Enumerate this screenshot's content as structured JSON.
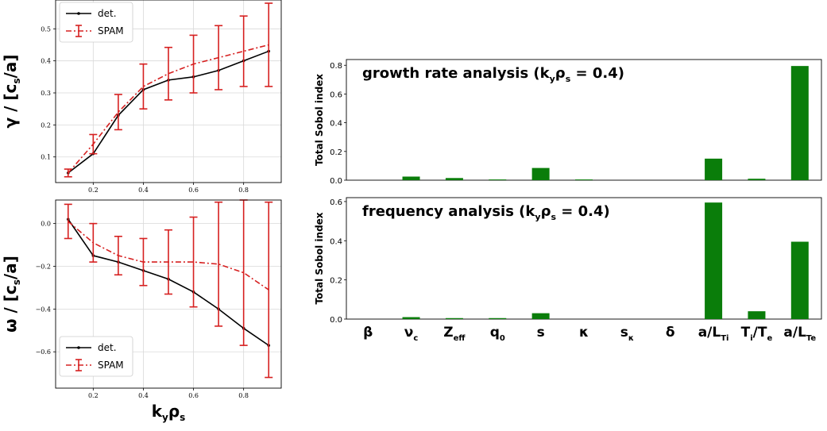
{
  "chart_data": [
    {
      "id": "growth",
      "type": "line",
      "ylabel_main": "γ / [c",
      "ylabel_sub": "s",
      "ylabel_tail": "/a]",
      "xlim": [
        0.05,
        0.95
      ],
      "ylim": [
        0.02,
        0.59
      ],
      "xticks": [
        "0.2",
        "0.4",
        "0.6",
        "0.8"
      ],
      "yticks": [
        "0.1",
        "0.2",
        "0.3",
        "0.4",
        "0.5"
      ],
      "grid": true,
      "legend_position": "upper-left",
      "series": [
        {
          "name": "det.",
          "color": "#000000",
          "x": [
            0.1,
            0.2,
            0.3,
            0.4,
            0.5,
            0.6,
            0.7,
            0.8,
            0.9
          ],
          "y": [
            0.05,
            0.11,
            0.23,
            0.31,
            0.34,
            0.35,
            0.37,
            0.4,
            0.43
          ]
        },
        {
          "name": "SPAM",
          "color": "#d62020",
          "x": [
            0.1,
            0.2,
            0.3,
            0.4,
            0.5,
            0.6,
            0.7,
            0.8,
            0.9
          ],
          "y": [
            0.05,
            0.14,
            0.24,
            0.32,
            0.36,
            0.39,
            0.41,
            0.43,
            0.45
          ],
          "err": [
            0.012,
            0.03,
            0.055,
            0.07,
            0.082,
            0.09,
            0.1,
            0.11,
            0.13
          ]
        }
      ]
    },
    {
      "id": "frequency",
      "type": "line",
      "ylabel_main": "ω / [c",
      "ylabel_sub": "s",
      "ylabel_tail": "/a]",
      "xlabel_main": "k",
      "xlabel_sub1": "y",
      "xlabel_mid": "ρ",
      "xlabel_sub2": "s",
      "xlim": [
        0.05,
        0.95
      ],
      "ylim": [
        -0.77,
        0.11
      ],
      "xticks": [
        "0.2",
        "0.4",
        "0.6",
        "0.8"
      ],
      "yticks": [
        "−0.6",
        "−0.4",
        "−0.2",
        "0.0"
      ],
      "grid": true,
      "legend_position": "lower-left",
      "series": [
        {
          "name": "det.",
          "color": "#000000",
          "x": [
            0.1,
            0.2,
            0.3,
            0.4,
            0.5,
            0.6,
            0.7,
            0.8,
            0.9
          ],
          "y": [
            0.02,
            -0.15,
            -0.18,
            -0.22,
            -0.26,
            -0.32,
            -0.4,
            -0.49,
            -0.57
          ]
        },
        {
          "name": "SPAM",
          "color": "#d62020",
          "x": [
            0.1,
            0.2,
            0.3,
            0.4,
            0.5,
            0.6,
            0.7,
            0.8,
            0.9
          ],
          "y": [
            0.01,
            -0.09,
            -0.15,
            -0.18,
            -0.18,
            -0.18,
            -0.19,
            -0.23,
            -0.31
          ],
          "err": [
            0.08,
            0.09,
            0.09,
            0.11,
            0.15,
            0.21,
            0.29,
            0.34,
            0.41
          ]
        }
      ]
    },
    {
      "id": "sobol-growth",
      "type": "bar",
      "title_pre": "growth rate analysis (k",
      "title_sub1": "y",
      "title_mid": "ρ",
      "title_sub2": "s",
      "title_post": " = 0.4)",
      "ylabel": "Total Sobol index",
      "ylim": [
        0,
        0.84
      ],
      "yticks": [
        "0.0",
        "0.2",
        "0.4",
        "0.6",
        "0.8"
      ],
      "color": "#0a7d0a",
      "values": [
        0.0,
        0.025,
        0.015,
        0.005,
        0.085,
        0.005,
        0.0,
        0.0,
        0.15,
        0.01,
        0.795
      ]
    },
    {
      "id": "sobol-frequency",
      "type": "bar",
      "title_pre": "frequency analysis (k",
      "title_sub1": "y",
      "title_mid": "ρ",
      "title_sub2": "s",
      "title_post": " = 0.4)",
      "ylabel": "Total Sobol index",
      "ylim": [
        0,
        0.62
      ],
      "yticks": [
        "0.0",
        "0.2",
        "0.4",
        "0.6"
      ],
      "color": "#0a7d0a",
      "values": [
        0.0,
        0.01,
        0.005,
        0.005,
        0.03,
        0.0,
        0.0,
        0.0,
        0.595,
        0.04,
        0.395
      ],
      "categories": [
        {
          "main": "β",
          "sub": ""
        },
        {
          "main": "ν",
          "sub": "c"
        },
        {
          "main": "Z",
          "sub": "eff"
        },
        {
          "main": "q",
          "sub": "0"
        },
        {
          "main": "s",
          "sub": ""
        },
        {
          "main": "κ",
          "sub": ""
        },
        {
          "main": "s",
          "sub": "κ"
        },
        {
          "main": "δ",
          "sub": ""
        },
        {
          "main": "a/L",
          "sub": "Ti"
        },
        {
          "main": "T",
          "sub": "i",
          "main2": "/T",
          "sub2": "e"
        },
        {
          "main": "a/L",
          "sub": "Te"
        }
      ]
    }
  ]
}
